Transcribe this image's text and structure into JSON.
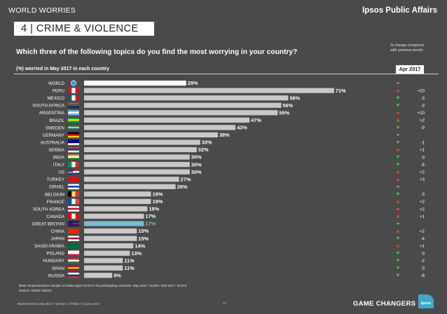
{
  "header": {
    "series_label": "WORLD WORRIES",
    "brand": "Ipsos Public Affairs",
    "section_title": "4  | CRIME & VIOLENCE",
    "question": "Which three of the following topics do you find the most worrying in your country?",
    "change_note_line1": "% change compared",
    "change_note_line2": "with previous month:",
    "subheading": "(%) worried in May 2017 in each country",
    "column_label": "Apr 2017"
  },
  "chart_data": {
    "type": "bar",
    "orientation": "horizontal",
    "categories": [
      "WORLD",
      "PERU",
      "MEXICO",
      "SOUTH AFRICA",
      "ARGENTINA",
      "BRAZIL",
      "SWEDEN",
      "GERMANY",
      "AUSTRALIA",
      "SERBIA",
      "INDIA",
      "ITALY",
      "US",
      "TURKEY",
      "ISRAEL",
      "BELGIUM",
      "FRANCE",
      "SOUTH KOREA",
      "CANADA",
      "GREAT BRITAIN",
      "CHINA",
      "JAPAN",
      "SAUDI ARABIA",
      "POLAND",
      "HUNGARY",
      "SPAIN",
      "RUSSIA"
    ],
    "values": [
      29,
      71,
      58,
      56,
      55,
      47,
      43,
      38,
      33,
      32,
      30,
      30,
      30,
      27,
      26,
      19,
      19,
      18,
      17,
      17,
      15,
      15,
      14,
      13,
      11,
      11,
      8
    ],
    "value_labels": [
      "29%",
      "71%",
      "58%",
      "56%",
      "55%",
      "47%",
      "43%",
      "38%",
      "33%",
      "32%",
      "30%",
      "30%",
      "30%",
      "27%",
      "26%",
      "19%",
      "19%",
      "18%",
      "17%",
      "17%",
      "15%",
      "15%",
      "14%",
      "13%",
      "11%",
      "11%",
      "8%"
    ],
    "change_labels": [
      "",
      "+10",
      "-3",
      "-3",
      "+10",
      "+2",
      "-9",
      "",
      "-1",
      "+1",
      "-3",
      "-6",
      "+2",
      "+3",
      "",
      "-3",
      "+2",
      "+2",
      "+1",
      "",
      "+2",
      "-4",
      "+1",
      "-3",
      "-2",
      "-3",
      "-8"
    ],
    "change_direction": [
      "none",
      "up",
      "down",
      "down",
      "up",
      "up",
      "down",
      "none",
      "down",
      "up",
      "down",
      "down",
      "up",
      "up",
      "none",
      "down",
      "up",
      "up",
      "up",
      "none",
      "up",
      "down",
      "up",
      "down",
      "down",
      "down",
      "down"
    ],
    "highlight": {
      "WORLD": "#ffffff",
      "GREAT BRITAIN": "#7fb7d2"
    },
    "bar_color": "#c8c8c8",
    "up_color": "#e0463c",
    "down_color": "#4fb848",
    "same_color": "#dddddd",
    "xlim": [
      0,
      80
    ],
    "flag_icons": [
      "globe-icon",
      "peru-flag-icon",
      "mexico-flag-icon",
      "south-africa-flag-icon",
      "argentina-flag-icon",
      "brazil-flag-icon",
      "sweden-flag-icon",
      "germany-flag-icon",
      "australia-flag-icon",
      "serbia-flag-icon",
      "india-flag-icon",
      "italy-flag-icon",
      "us-flag-icon",
      "turkey-flag-icon",
      "israel-flag-icon",
      "belgium-flag-icon",
      "france-flag-icon",
      "south-korea-flag-icon",
      "canada-flag-icon",
      "great-britain-flag-icon",
      "china-flag-icon",
      "japan-flag-icon",
      "saudi-arabia-flag-icon",
      "poland-flag-icon",
      "hungary-flag-icon",
      "spain-flag-icon",
      "russia-flag-icon"
    ]
  },
  "notes": {
    "base": "Base: Representative sample of adults aged 16-64 in 26 participating countries. May 2017: 18,550; April 2017: 18,573.",
    "source": "Source: Global Advisor"
  },
  "footer": {
    "left": "World Worries  | May 2017 | Version 1 | Public | © Ipsos 2017",
    "page": "17",
    "tagline": "GAME CHANGERS",
    "logo_text": "Ipsos"
  }
}
